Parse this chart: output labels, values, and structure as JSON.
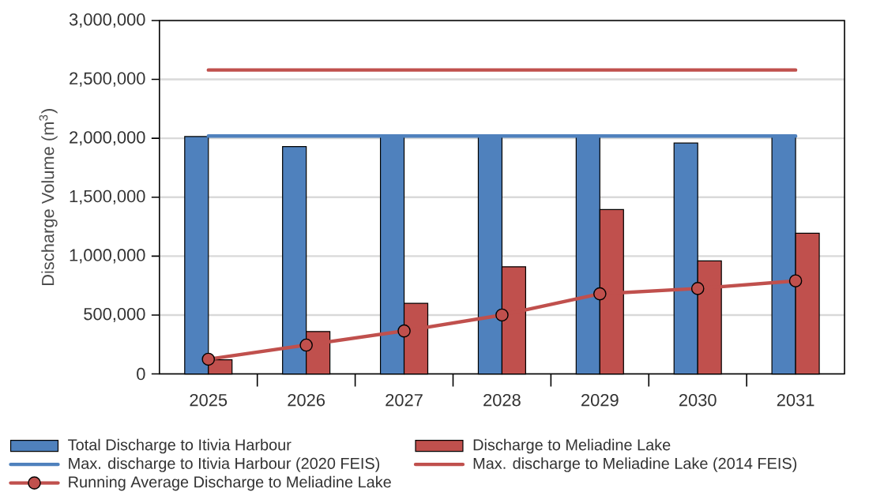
{
  "chart_data": {
    "type": "bar",
    "ylabel": "Discharge Volume (m$^{3}$)",
    "categories": [
      "2025",
      "2026",
      "2027",
      "2028",
      "2029",
      "2030",
      "2031"
    ],
    "series": [
      {
        "name": "Total Discharge to Itivia Harbour",
        "color": "#4f81bd",
        "values": [
          2015000,
          1930000,
          2020000,
          2020000,
          2020000,
          1960000,
          2020000
        ]
      },
      {
        "name": "Discharge to Meliadine Lake",
        "color": "#c0504d",
        "values": [
          120000,
          360000,
          600000,
          910000,
          1395000,
          960000,
          1195000
        ]
      },
      {
        "name": "Max. discharge to Itivia Harbour (2020 FEIS)",
        "type": "line",
        "color": "#4f81bd",
        "values": [
          2020000,
          2020000,
          2020000,
          2020000,
          2020000,
          2020000,
          2020000
        ]
      },
      {
        "name": "Max. discharge to Meliadine Lake (2014 FEIS)",
        "type": "line",
        "color": "#c0504d",
        "values": [
          2580000,
          2580000,
          2580000,
          2580000,
          2580000,
          2580000,
          2580000
        ]
      },
      {
        "name": "Running Average Discharge to Meliadine Lake",
        "type": "line",
        "marker": "circle",
        "color": "#c0504d",
        "values": [
          125000,
          245000,
          365000,
          500000,
          680000,
          725000,
          790000
        ]
      }
    ],
    "ylim": [
      0,
      3000000
    ],
    "yticks": [
      0,
      {
        "value": 500000,
        "label": "500,000"
      },
      {
        "value": 1000000,
        "label": "1,000,000"
      },
      {
        "value": 1500000,
        "label": "1,500,000"
      },
      {
        "value": 2000000,
        "label": "2,000,000"
      },
      {
        "value": 2500000,
        "label": "2,500,000"
      },
      {
        "value": 3000000,
        "label": "3,000,000"
      }
    ],
    "grid": "y",
    "legend": "bottom"
  }
}
